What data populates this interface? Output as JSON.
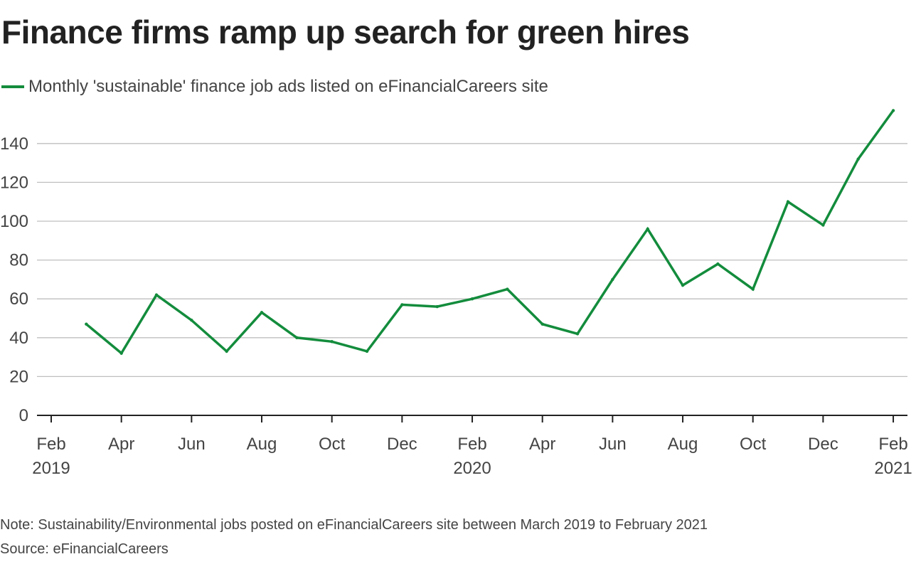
{
  "colors": {
    "series": "#138c3c",
    "grid": "#bfbfbf",
    "axis": "#222222",
    "text": "#444444"
  },
  "chart_data": {
    "type": "line",
    "title": "Finance firms ramp up search for green hires",
    "legend": "Monthly 'sustainable' finance job ads listed on eFinancialCareers site",
    "legend_position": "top-left",
    "xlabel": "",
    "ylabel": "",
    "ylim": [
      0,
      160
    ],
    "y_ticks": [
      0,
      20,
      40,
      60,
      80,
      100,
      120,
      140
    ],
    "grid": true,
    "x_tick_labels": [
      {
        "month": "Feb",
        "year": "2019"
      },
      {
        "month": "Apr",
        "year": ""
      },
      {
        "month": "Jun",
        "year": ""
      },
      {
        "month": "Aug",
        "year": ""
      },
      {
        "month": "Oct",
        "year": ""
      },
      {
        "month": "Dec",
        "year": ""
      },
      {
        "month": "Feb",
        "year": "2020"
      },
      {
        "month": "Apr",
        "year": ""
      },
      {
        "month": "Jun",
        "year": ""
      },
      {
        "month": "Aug",
        "year": ""
      },
      {
        "month": "Oct",
        "year": ""
      },
      {
        "month": "Dec",
        "year": ""
      },
      {
        "month": "Feb",
        "year": "2021"
      }
    ],
    "series": [
      {
        "name": "Monthly 'sustainable' finance job ads listed on eFinancialCareers site",
        "x": [
          "2019-03",
          "2019-04",
          "2019-05",
          "2019-06",
          "2019-07",
          "2019-08",
          "2019-09",
          "2019-10",
          "2019-11",
          "2019-12",
          "2020-01",
          "2020-02",
          "2020-03",
          "2020-04",
          "2020-05",
          "2020-06",
          "2020-07",
          "2020-08",
          "2020-09",
          "2020-10",
          "2020-11",
          "2020-12",
          "2021-01",
          "2021-02"
        ],
        "values": [
          47,
          32,
          62,
          49,
          33,
          53,
          40,
          38,
          33,
          57,
          56,
          60,
          65,
          47,
          42,
          70,
          96,
          67,
          78,
          65,
          110,
          98,
          132,
          157
        ]
      }
    ]
  },
  "footer": {
    "note": "Note: Sustainability/Environmental jobs posted on eFinancialCareers site between March 2019 to February 2021",
    "source": "Source: eFinancialCareers"
  }
}
